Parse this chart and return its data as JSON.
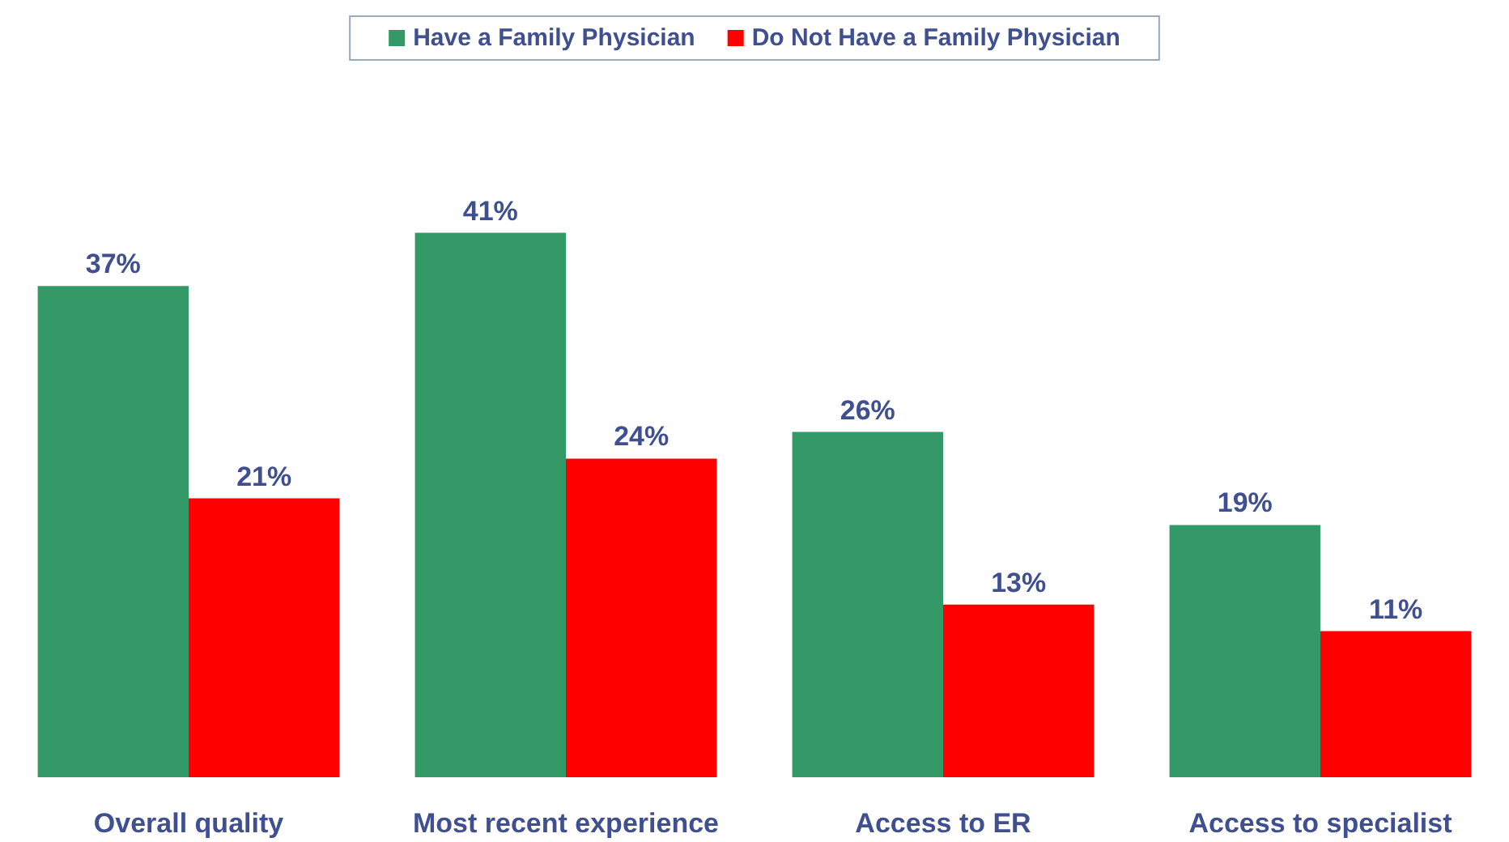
{
  "chart_data": {
    "type": "bar",
    "categories": [
      "Overall quality",
      "Most recent experience",
      "Access to ER",
      "Access to specialist"
    ],
    "series": [
      {
        "name": "Have a Family Physician",
        "color": "#339966",
        "values": [
          37,
          41,
          26,
          19
        ],
        "value_labels": [
          "37%",
          "41%",
          "26%",
          "19%"
        ]
      },
      {
        "name": "Do Not Have a Family Physician",
        "color": "#ff0000",
        "values": [
          21,
          24,
          13,
          11
        ],
        "value_labels": [
          "21%",
          "24%",
          "13%",
          "11%"
        ]
      }
    ],
    "legend": "top"
  }
}
